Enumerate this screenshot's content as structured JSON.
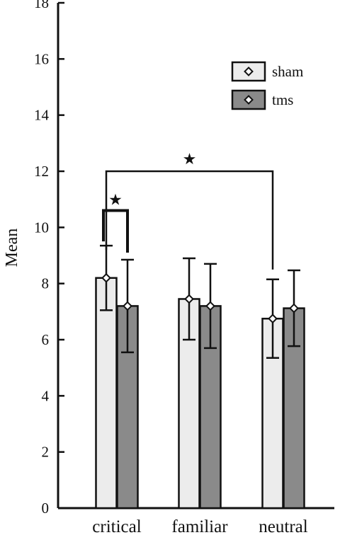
{
  "chart_data": {
    "type": "bar",
    "title": "",
    "xlabel": "",
    "ylabel": "Mean",
    "ylim": [
      0,
      18
    ],
    "yticks": [
      0,
      2,
      4,
      6,
      8,
      10,
      12,
      14,
      16,
      18
    ],
    "categories": [
      "critical",
      "familiar",
      "neutral"
    ],
    "series": [
      {
        "name": "sham",
        "color": "#ececec",
        "values": [
          8.2,
          7.45,
          6.75
        ],
        "error": [
          1.15,
          1.45,
          1.4
        ]
      },
      {
        "name": "tms",
        "color": "#8a8a8a",
        "values": [
          7.2,
          7.2,
          7.12
        ],
        "error": [
          1.65,
          1.5,
          1.35
        ]
      }
    ],
    "legend": {
      "placement": "top-right",
      "marker": "diamond"
    },
    "significance": [
      {
        "from": {
          "category": "critical",
          "series": "sham"
        },
        "to": {
          "category": "neutral",
          "series": "sham"
        },
        "level": 12,
        "symbol": "★"
      },
      {
        "from": {
          "category": "critical",
          "series": "sham"
        },
        "to": {
          "category": "critical",
          "series": "tms"
        },
        "level": 10.6,
        "symbol": "★"
      }
    ],
    "grid": false
  }
}
